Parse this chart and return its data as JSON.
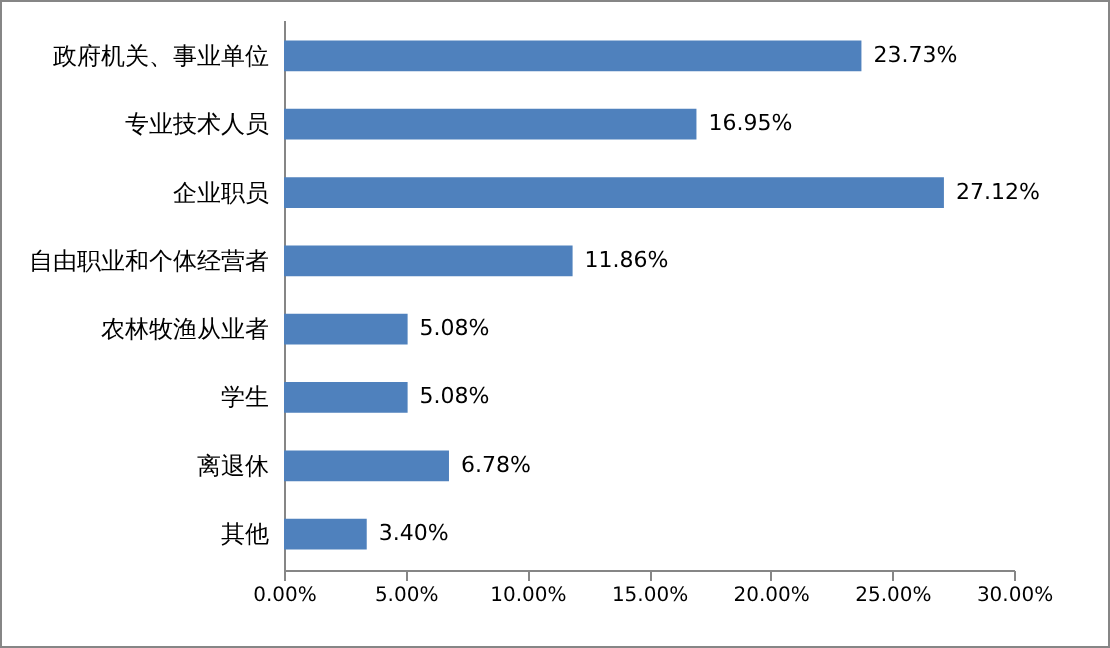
{
  "chart_data": {
    "type": "bar",
    "orientation": "horizontal",
    "categories": [
      "政府机关、事业单位",
      "专业技术人员",
      "企业职员",
      "自由职业和个体经营者",
      "农林牧渔从业者",
      "学生",
      "离退休",
      "其他"
    ],
    "values": [
      23.73,
      16.95,
      27.12,
      11.86,
      5.08,
      5.08,
      6.78,
      3.4
    ],
    "value_labels": [
      "23.73%",
      "16.95%",
      "27.12%",
      "11.86%",
      "5.08%",
      "5.08%",
      "6.78%",
      "3.40%"
    ],
    "color": "#4f81bd",
    "xlim": [
      0,
      30
    ],
    "xticks": [
      {
        "value": 0,
        "label": "0.00%"
      },
      {
        "value": 5,
        "label": "5.00%"
      },
      {
        "value": 10,
        "label": "10.00%"
      },
      {
        "value": 15,
        "label": "15.00%"
      },
      {
        "value": 20,
        "label": "20.00%"
      },
      {
        "value": 25,
        "label": "25.00%"
      },
      {
        "value": 30,
        "label": "30.00%"
      }
    ],
    "grid": false
  }
}
